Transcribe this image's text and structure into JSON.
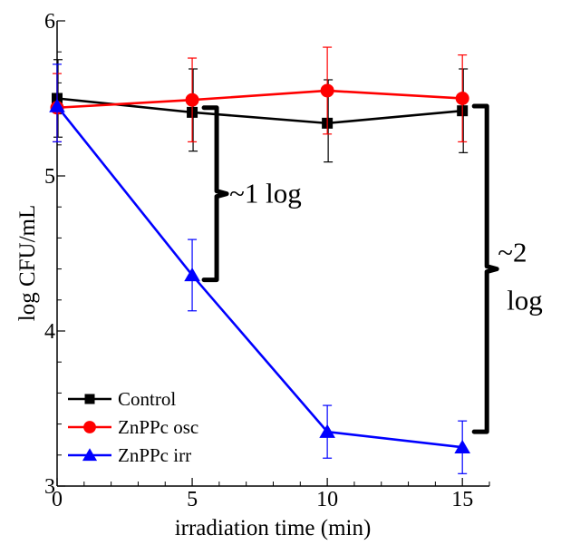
{
  "chart_data": {
    "type": "line",
    "xlabel": "irradiation time (min)",
    "ylabel": "log CFU/mL",
    "xlim": [
      0,
      16
    ],
    "ylim": [
      3,
      6
    ],
    "x_ticks": [
      "0",
      "5",
      "10",
      "15"
    ],
    "y_ticks": [
      "3",
      "4",
      "5",
      "6"
    ],
    "grid": false,
    "legend_position": "bottom-left",
    "series": [
      {
        "name": "Control",
        "color": "#000000",
        "marker": "square",
        "x": [
          0,
          5,
          10,
          15
        ],
        "y": [
          5.5,
          5.41,
          5.34,
          5.42
        ],
        "err_low": [
          0.25,
          0.25,
          0.25,
          0.27
        ],
        "err_high": [
          0.25,
          0.28,
          0.28,
          0.27
        ]
      },
      {
        "name": "ZnPPc osc",
        "color": "#ff0000",
        "marker": "circle",
        "x": [
          0,
          5,
          10,
          15
        ],
        "y": [
          5.44,
          5.49,
          5.55,
          5.5
        ],
        "err_low": [
          0.22,
          0.27,
          0.28,
          0.28
        ],
        "err_high": [
          0.22,
          0.27,
          0.28,
          0.28
        ]
      },
      {
        "name": "ZnPPc irr",
        "color": "#0000ff",
        "marker": "triangle",
        "x": [
          0,
          5,
          10,
          15
        ],
        "y": [
          5.45,
          4.36,
          3.35,
          3.25
        ],
        "err_low": [
          0.23,
          0.23,
          0.17,
          0.17
        ],
        "err_high": [
          0.27,
          0.23,
          0.17,
          0.17
        ]
      }
    ],
    "annotations": [
      {
        "lines": [
          "~1 log"
        ],
        "x": 5,
        "y_from": 5.44,
        "y_to": 4.33
      },
      {
        "lines": [
          "~2",
          "log"
        ],
        "x": 15,
        "y_from": 5.45,
        "y_to": 3.35
      }
    ]
  }
}
